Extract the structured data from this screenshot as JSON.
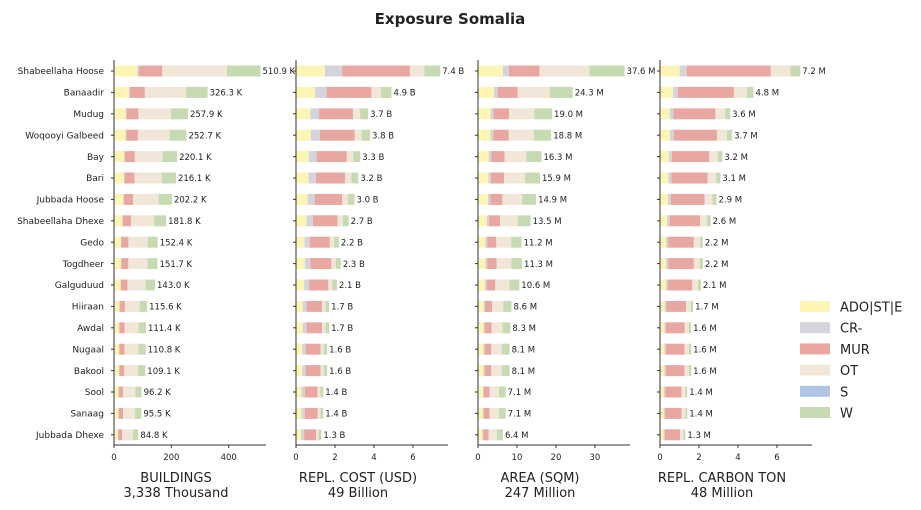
{
  "chart_data": {
    "type": "bar",
    "orientation": "horizontal",
    "stacked": true,
    "title": "Exposure Somalia",
    "categories": [
      "Shabeellaha Hoose",
      "Banaadir",
      "Mudug",
      "Woqooyi Galbeed",
      "Bay",
      "Bari",
      "Jubbada Hoose",
      "Shabeellaha Dhexe",
      "Gedo",
      "Togdheer",
      "Galguduud",
      "Hiiraan",
      "Awdal",
      "Nugaal",
      "Bakool",
      "Sool",
      "Sanaag",
      "Jubbada Dhexe"
    ],
    "legend": [
      {
        "name": "ADO|ST|E",
        "color": "#fdf5b4"
      },
      {
        "name": "CR-",
        "color": "#d3d4dc"
      },
      {
        "name": "MUR",
        "color": "#e8a8a1"
      },
      {
        "name": "OT",
        "color": "#f2e6d8"
      },
      {
        "name": "S",
        "color": "#b0c4e6"
      },
      {
        "name": "W",
        "color": "#c7dbb2"
      }
    ],
    "legend_position": "right",
    "panels": [
      {
        "xlabel": "BUILDINGS",
        "subtitle": "3,338 Thousand",
        "xlim": [
          0,
          530
        ],
        "xticks": [
          0,
          200,
          400
        ],
        "xtick_labels": [
          "0",
          "200",
          "400"
        ],
        "totals": [
          510.9,
          326.3,
          257.9,
          252.7,
          220.1,
          216.1,
          202.2,
          181.8,
          152.4,
          151.7,
          143.0,
          115.6,
          111.4,
          110.8,
          109.1,
          96.2,
          95.5,
          84.8
        ],
        "total_labels": [
          "510.9 K",
          "326.3 K",
          "257.9 K",
          "252.7 K",
          "220.1 K",
          "216.1 K",
          "202.2 K",
          "181.8 K",
          "152.4 K",
          "151.7 K",
          "143.0 K",
          "115.6 K",
          "111.4 K",
          "110.8 K",
          "109.1 K",
          "96.2 K",
          "95.5 K",
          "84.8 K"
        ],
        "shares": {
          "ADO|ST|E": 0.16,
          "CR-": 0.01,
          "MUR": 0.16,
          "OT": 0.44,
          "S": 0.0,
          "W": 0.23
        }
      },
      {
        "xlabel": "REPL. COST (USD)",
        "subtitle": "49 Billion",
        "xlim": [
          0,
          7.8
        ],
        "xticks": [
          0,
          2,
          4,
          6
        ],
        "xtick_labels": [
          "0",
          "2",
          "4",
          "6"
        ],
        "totals": [
          7.4,
          4.9,
          3.7,
          3.8,
          3.3,
          3.2,
          3.0,
          2.7,
          2.2,
          2.3,
          2.1,
          1.7,
          1.7,
          1.6,
          1.6,
          1.4,
          1.4,
          1.3
        ],
        "total_labels": [
          "7.4 B",
          "4.9 B",
          "3.7 B",
          "3.8 B",
          "3.3 B",
          "3.2 B",
          "3.0 B",
          "2.7 B",
          "2.2 B",
          "2.3 B",
          "2.1 B",
          "1.7 B",
          "1.7 B",
          "1.6 B",
          "1.6 B",
          "1.4 B",
          "1.4 B",
          "1.3 B"
        ],
        "shares": {
          "ADO|ST|E": 0.2,
          "CR-": 0.12,
          "MUR": 0.47,
          "OT": 0.1,
          "S": 0.0,
          "W": 0.11
        }
      },
      {
        "xlabel": "AREA (SQM)",
        "subtitle": "247 Million",
        "xlim": [
          0,
          39
        ],
        "xticks": [
          0,
          10,
          20,
          30
        ],
        "xtick_labels": [
          "0",
          "10",
          "20",
          "30"
        ],
        "totals": [
          37.6,
          24.3,
          19.0,
          18.8,
          16.3,
          15.9,
          14.9,
          13.5,
          11.2,
          11.3,
          10.6,
          8.6,
          8.3,
          8.1,
          8.1,
          7.1,
          7.1,
          6.4
        ],
        "total_labels": [
          "37.6 M",
          "24.3 M",
          "19.0 M",
          "18.8 M",
          "16.3 M",
          "15.9 M",
          "14.9 M",
          "13.5 M",
          "11.2 M",
          "11.3 M",
          "10.6 M",
          "8.6 M",
          "8.3 M",
          "8.1 M",
          "8.1 M",
          "7.1 M",
          "7.1 M",
          "6.4 M"
        ],
        "shares": {
          "ADO|ST|E": 0.17,
          "CR-": 0.04,
          "MUR": 0.21,
          "OT": 0.34,
          "S": 0.0,
          "W": 0.24
        }
      },
      {
        "xlabel": "REPL. CARBON TON",
        "subtitle": "48 Million",
        "xlim": [
          0,
          7.8
        ],
        "xticks": [
          0,
          2,
          4,
          6
        ],
        "xtick_labels": [
          "0",
          "2",
          "4",
          "6"
        ],
        "totals": [
          7.2,
          4.8,
          3.6,
          3.7,
          3.2,
          3.1,
          2.9,
          2.6,
          2.2,
          2.2,
          2.1,
          1.7,
          1.6,
          1.6,
          1.6,
          1.4,
          1.4,
          1.3
        ],
        "total_labels": [
          "7.2 M",
          "4.8 M",
          "3.6 M",
          "3.7 M",
          "3.2 M",
          "3.1 M",
          "2.9 M",
          "2.6 M",
          "2.2 M",
          "2.2 M",
          "2.1 M",
          "1.7 M",
          "1.6 M",
          "1.6 M",
          "1.6 M",
          "1.4 M",
          "1.4 M",
          "1.3 M"
        ],
        "shares": {
          "ADO|ST|E": 0.14,
          "CR-": 0.05,
          "MUR": 0.6,
          "OT": 0.14,
          "S": 0.0,
          "W": 0.07
        }
      }
    ]
  }
}
